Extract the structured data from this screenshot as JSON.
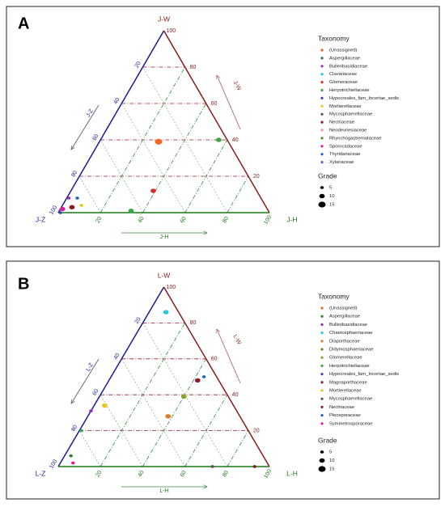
{
  "chart_data": [
    {
      "type": "ternary",
      "panel_label": "A",
      "w_label": "J-W",
      "h_label": "J-H",
      "z_label": "J-Z",
      "wticks": [
        20,
        40,
        60,
        80,
        100
      ],
      "hticks": [
        20,
        40,
        60,
        80,
        100
      ],
      "zticks": [
        20,
        40,
        60,
        80,
        100
      ],
      "legend_title": "Taxonomy",
      "series": [
        {
          "name": "(Unassigned)",
          "color": "#f26522",
          "w": [
            39
          ],
          "h": [
            28
          ],
          "z": [
            33
          ],
          "grade": [
            15
          ]
        },
        {
          "name": "Aspergillaceae",
          "color": "#2e7d32",
          "w": [],
          "h": [],
          "z": [],
          "grade": []
        },
        {
          "name": "Bulleribasidiaceae",
          "color": "#9c27b0",
          "w": [
            8
          ],
          "h": [
            1
          ],
          "z": [
            91
          ],
          "grade": [
            5
          ]
        },
        {
          "name": "Clavariaceae",
          "color": "#26c6da",
          "w": [],
          "h": [],
          "z": [],
          "grade": []
        },
        {
          "name": "Glomeraceae",
          "color": "#d32f2f",
          "w": [
            12
          ],
          "h": [
            39
          ],
          "z": [
            49
          ],
          "grade": [
            10
          ]
        },
        {
          "name": "Herpotrichiellaceae",
          "color": "#3aa845",
          "w": [
            40,
            1
          ],
          "h": [
            56,
            34
          ],
          "z": [
            4,
            65
          ],
          "grade": [
            10,
            10
          ]
        },
        {
          "name": "Hypocreales_fam_Incertae_sedis",
          "color": "#3949ab",
          "w": [
            0
          ],
          "h": [
            1
          ],
          "z": [
            99
          ],
          "grade": [
            5
          ]
        },
        {
          "name": "Mortierellaceae",
          "color": "#e6c619",
          "w": [
            4
          ],
          "h": [
            9
          ],
          "z": [
            87
          ],
          "grade": [
            5
          ]
        },
        {
          "name": "Mycosphaerellaceae",
          "color": "#555555",
          "w": [],
          "h": [],
          "z": [],
          "grade": []
        },
        {
          "name": "Nectriaceae",
          "color": "#8b1a1a",
          "w": [
            3
          ],
          "h": [
            5
          ],
          "z": [
            92
          ],
          "grade": [
            10
          ]
        },
        {
          "name": "Neodevriesiaceae",
          "color": "#f48fb1",
          "w": [],
          "h": [],
          "z": [],
          "grade": []
        },
        {
          "name": "Rhynchogastremataceae",
          "color": "#558b2f",
          "w": [],
          "h": [],
          "z": [],
          "grade": []
        },
        {
          "name": "Sporocadaceae",
          "color": "#d81b9c",
          "w": [
            2
          ],
          "h": [
            1
          ],
          "z": [
            97
          ],
          "grade": [
            10
          ]
        },
        {
          "name": "Thyridariaceae",
          "color": "#1e64c8",
          "w": [
            8
          ],
          "h": [
            5
          ],
          "z": [
            87
          ],
          "grade": [
            5
          ]
        },
        {
          "name": "Xylariaceae",
          "color": "#7e57c2",
          "w": [],
          "h": [],
          "z": [],
          "grade": []
        }
      ],
      "size_legend_title": "Grade",
      "size_legend": [
        5,
        10,
        15
      ]
    },
    {
      "type": "ternary",
      "panel_label": "B",
      "w_label": "L-W",
      "h_label": "L-H",
      "z_label": "L-Z",
      "wticks": [
        20,
        40,
        60,
        80,
        100
      ],
      "hticks": [
        20,
        40,
        60,
        80,
        100
      ],
      "zticks": [
        20,
        40,
        60,
        80,
        100
      ],
      "legend_title": "Taxonomy",
      "series": [
        {
          "name": "(Unassigned)",
          "color": "#f26522",
          "w": [],
          "h": [],
          "z": [],
          "grade": []
        },
        {
          "name": "Aspergillaceae",
          "color": "#2e7d32",
          "w": [
            6
          ],
          "h": [
            3
          ],
          "z": [
            91
          ],
          "grade": [
            5
          ]
        },
        {
          "name": "Bulleribasidiaceae",
          "color": "#9c27b0",
          "w": [
            31
          ],
          "h": [
            0
          ],
          "z": [
            69
          ],
          "grade": [
            5
          ]
        },
        {
          "name": "Chaetosphaeriaceae",
          "color": "#26c6da",
          "w": [
            86
          ],
          "h": [
            8
          ],
          "z": [
            6
          ],
          "grade": [
            10
          ]
        },
        {
          "name": "Diaporthaceae",
          "color": "#e07b24",
          "w": [
            28
          ],
          "h": [
            38
          ],
          "z": [
            34
          ],
          "grade": [
            10
          ]
        },
        {
          "name": "Didymosphaeriaceae",
          "color": "#6d8f2a",
          "w": [],
          "h": [],
          "z": [],
          "grade": []
        },
        {
          "name": "Glomerellaceae",
          "color": "#8ca32a",
          "w": [
            39
          ],
          "h": [
            40
          ],
          "z": [
            21
          ],
          "grade": [
            10
          ]
        },
        {
          "name": "Herpotrichiellaceae",
          "color": "#3aa845",
          "w": [
            20
          ],
          "h": [
            1
          ],
          "z": [
            79
          ],
          "grade": [
            5
          ]
        },
        {
          "name": "Hypocreales_fam_Incertae_sedis",
          "color": "#3949ab",
          "w": [],
          "h": [],
          "z": [],
          "grade": []
        },
        {
          "name": "Magnaporthaceae",
          "color": "#8b1a3a",
          "w": [
            48
          ],
          "h": [
            42
          ],
          "z": [
            10
          ],
          "grade": [
            10
          ]
        },
        {
          "name": "Mortierellaceae",
          "color": "#e6c619",
          "w": [
            34
          ],
          "h": [
            5
          ],
          "z": [
            61
          ],
          "grade": [
            10
          ]
        },
        {
          "name": "Mycosphaerellaceae",
          "color": "#555555",
          "w": [
            0
          ],
          "h": [
            73
          ],
          "z": [
            27
          ],
          "grade": [
            5
          ]
        },
        {
          "name": "Nectriaceae",
          "color": "#8b1a1a",
          "w": [
            0
          ],
          "h": [
            93
          ],
          "z": [
            7
          ],
          "grade": [
            5
          ]
        },
        {
          "name": "Pleosporaceae",
          "color": "#1e64c8",
          "w": [
            50
          ],
          "h": [
            44
          ],
          "z": [
            6
          ],
          "grade": [
            5
          ]
        },
        {
          "name": "Symmetrosporaceae",
          "color": "#d81b9c",
          "w": [
            2
          ],
          "h": [
            6
          ],
          "z": [
            92
          ],
          "grade": [
            5
          ]
        }
      ],
      "size_legend_title": "Grade",
      "size_legend": [
        5,
        10,
        15
      ]
    }
  ]
}
